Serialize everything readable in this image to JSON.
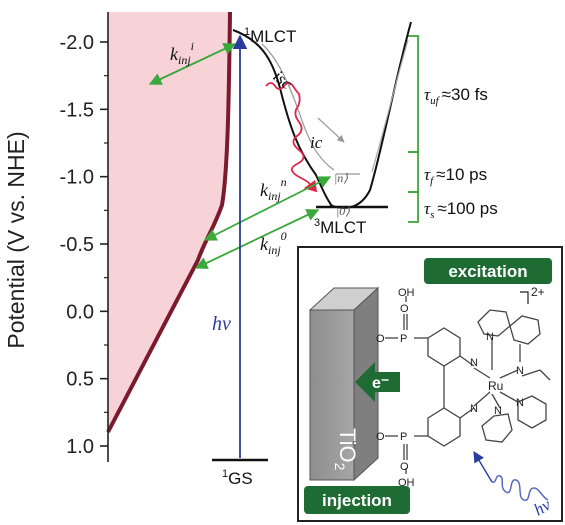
{
  "axis": {
    "ylabel": "Potential (V vs. NHE)",
    "ticks": [
      {
        "label": "-2.0",
        "value": -2.0
      },
      {
        "label": "-1.5",
        "value": -1.5
      },
      {
        "label": "-1.0",
        "value": -1.0
      },
      {
        "label": "-0.5",
        "value": -0.5
      },
      {
        "label": "0.0",
        "value": 0.0
      },
      {
        "label": "0.5",
        "value": 0.5
      },
      {
        "label": "1.0",
        "value": 1.0
      }
    ]
  },
  "levels": {
    "mlct1": "1MLCT",
    "mlct3": "3MLCT",
    "gs": "1GS",
    "vib_n": "|n⟩",
    "vib_0": "|0⟩",
    "superscript_one": "1",
    "superscript_three": "3"
  },
  "processes": {
    "isc": "isc",
    "ic": "ic",
    "hv": "hν",
    "kinj_i": "k",
    "kinj_i_sub": "inj",
    "kinj_i_sup": "i",
    "kinj_n": "k",
    "kinj_n_sub": "inj",
    "kinj_n_sup": "n",
    "kinj_0": "k",
    "kinj_0_sub": "inj",
    "kinj_0_sup": "0"
  },
  "timescales": {
    "tau_uf": "τuf ≈30 fs",
    "tau_f": "τf ≈10 ps",
    "tau_s": "τs ≈100 ps",
    "tau_uf_sym": "τ",
    "tau_uf_sub": "uf",
    "tau_uf_val": "≈30 fs",
    "tau_f_sym": "τ",
    "tau_f_sub": "f",
    "tau_f_val": "≈10 ps",
    "tau_s_sym": "τ",
    "tau_s_sub": "s",
    "tau_s_val": "≈100 ps"
  },
  "inset": {
    "excitation": "excitation",
    "injection": "injection",
    "tio2": "TiO2",
    "tio2_main": "TiO",
    "tio2_sub": "2",
    "electron": "e⁻",
    "charge": "2+",
    "hv": "hν",
    "atoms": {
      "oh_top": "OH",
      "o_top_left": "O",
      "p_top": "P",
      "o_top": "O",
      "oh_bot": "OH",
      "o_bot_left": "O",
      "p_bot": "P",
      "o_bot": "O",
      "n1": "N",
      "n2": "N",
      "n3": "N",
      "n4": "N",
      "n5": "N",
      "n6": "N",
      "ru": "Ru"
    }
  },
  "colors": {
    "cb_fill": "#f7d3d8",
    "cb_edge": "#7a1a2c",
    "green": "#3aa83a",
    "blue": "#2a3c9e",
    "red": "#e0244a",
    "badge": "#1f6b34"
  }
}
